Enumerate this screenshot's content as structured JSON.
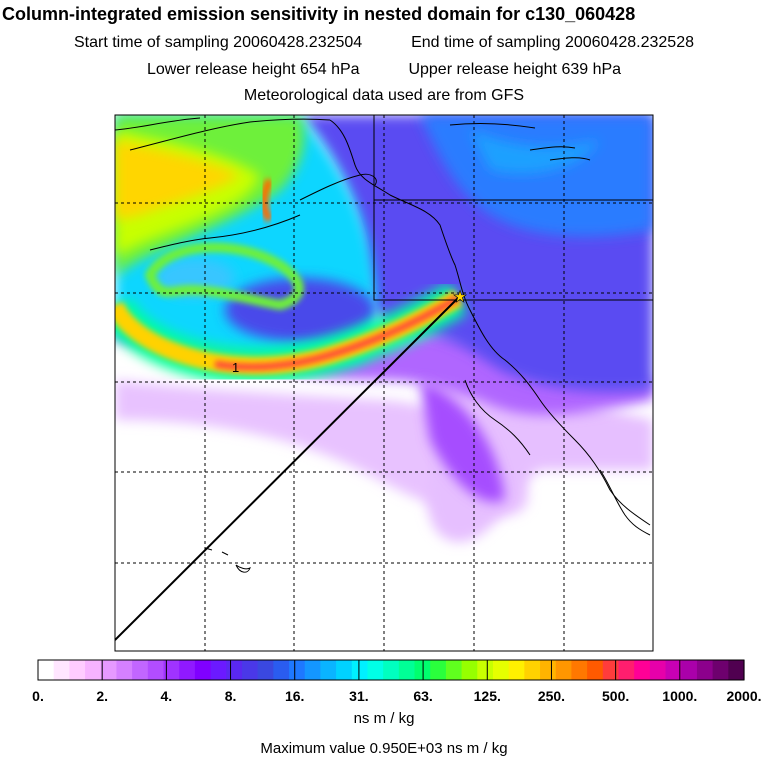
{
  "title": "Column-integrated emission sensitivity in nested domain for c130_060428",
  "info": {
    "start": "Start time of sampling 20060428.232504",
    "end": "End time of sampling 20060428.232528",
    "lower": "Lower release height  654 hPa",
    "upper": "Upper release height  639 hPa",
    "met": "Meteorological data used are from GFS"
  },
  "chart_data": {
    "type": "heatmap",
    "colorbar": {
      "tick_labels": [
        "0.",
        "2.",
        "4.",
        "8.",
        "16.",
        "31.",
        "63.",
        "125.",
        "250.",
        "500.",
        "1000.",
        "2000."
      ],
      "unit": "ns m / kg"
    },
    "plume_label": "1",
    "max_value_text": "Maximum value  0.950E+03 ns m / kg",
    "release_marker": "star",
    "grid": "dashed"
  },
  "colors": {
    "colorbar": [
      "#ffffff",
      "#ffe6ff",
      "#ffccff",
      "#f7b3ff",
      "#e699ff",
      "#d580ff",
      "#c266ff",
      "#b24dff",
      "#a033ff",
      "#9019ff",
      "#8000ff",
      "#6b1aff",
      "#5a28f0",
      "#4a38e8",
      "#3a48e0",
      "#2a5cf0",
      "#1e78ff",
      "#1496ff",
      "#0ab4ff",
      "#00d2ff",
      "#00f0ff",
      "#00ffe6",
      "#00ffc0",
      "#00ff96",
      "#00ff6e",
      "#2aff3c",
      "#60ff1e",
      "#96ff00",
      "#c8ff00",
      "#e6ff00",
      "#fff000",
      "#ffd200",
      "#ffb400",
      "#ff9600",
      "#ff7800",
      "#ff5a00",
      "#ff3c3c",
      "#ff1e6e",
      "#ff0096",
      "#e600aa",
      "#c800b4",
      "#aa00aa",
      "#8c008c",
      "#6e006e",
      "#500050"
    ],
    "grid": "#000000",
    "coast": "#000000"
  }
}
